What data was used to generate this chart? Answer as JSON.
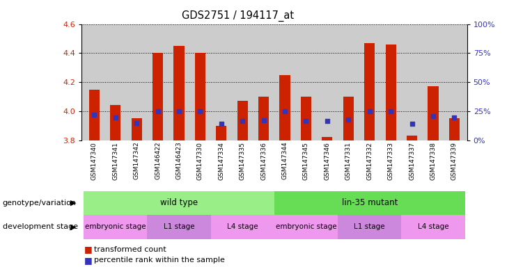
{
  "title": "GDS2751 / 194117_at",
  "samples": [
    "GSM147340",
    "GSM147341",
    "GSM147342",
    "GSM146422",
    "GSM146423",
    "GSM147330",
    "GSM147334",
    "GSM147335",
    "GSM147336",
    "GSM147344",
    "GSM147345",
    "GSM147346",
    "GSM147331",
    "GSM147332",
    "GSM147333",
    "GSM147337",
    "GSM147338",
    "GSM147339"
  ],
  "bar_tops": [
    4.15,
    4.04,
    3.95,
    4.4,
    4.45,
    4.4,
    3.9,
    4.07,
    4.1,
    4.25,
    4.1,
    3.82,
    4.1,
    4.47,
    4.46,
    3.83,
    4.17,
    3.95
  ],
  "bar_bottoms": [
    3.8,
    3.8,
    3.8,
    3.8,
    3.8,
    3.8,
    3.8,
    3.8,
    3.8,
    3.8,
    3.8,
    3.8,
    3.8,
    3.8,
    3.8,
    3.8,
    3.8,
    3.8
  ],
  "blue_markers": [
    3.975,
    3.958,
    3.92,
    4.0,
    4.0,
    4.0,
    3.913,
    3.932,
    3.936,
    4.0,
    3.93,
    3.93,
    3.94,
    4.0,
    4.0,
    3.913,
    3.968,
    3.955
  ],
  "ylim_min": 3.8,
  "ylim_max": 4.6,
  "yticks_left": [
    3.8,
    4.0,
    4.2,
    4.4,
    4.6
  ],
  "yticks_right": [
    0,
    25,
    50,
    75,
    100
  ],
  "bar_color": "#CC2200",
  "blue_color": "#3333BB",
  "bar_width": 0.5,
  "genotype_groups": [
    {
      "label": "wild type",
      "start": 0,
      "end": 9,
      "color": "#99EE88"
    },
    {
      "label": "lin-35 mutant",
      "start": 9,
      "end": 18,
      "color": "#66DD55"
    }
  ],
  "dev_stage_groups": [
    {
      "label": "embryonic stage",
      "start": 0,
      "end": 3,
      "color": "#EE99EE"
    },
    {
      "label": "L1 stage",
      "start": 3,
      "end": 6,
      "color": "#CC88DD"
    },
    {
      "label": "L4 stage",
      "start": 6,
      "end": 9,
      "color": "#EE99EE"
    },
    {
      "label": "embryonic stage",
      "start": 9,
      "end": 12,
      "color": "#EE99EE"
    },
    {
      "label": "L1 stage",
      "start": 12,
      "end": 15,
      "color": "#CC88DD"
    },
    {
      "label": "L4 stage",
      "start": 15,
      "end": 18,
      "color": "#EE99EE"
    }
  ],
  "legend_tc_label": "transformed count",
  "legend_pr_label": "percentile rank within the sample",
  "legend_tc_color": "#CC2200",
  "legend_pr_color": "#3333BB",
  "genotype_label": "genotype/variation",
  "dev_label": "development stage",
  "xtick_bg": "#BBBBBB",
  "plot_bg": "#CCCCCC"
}
